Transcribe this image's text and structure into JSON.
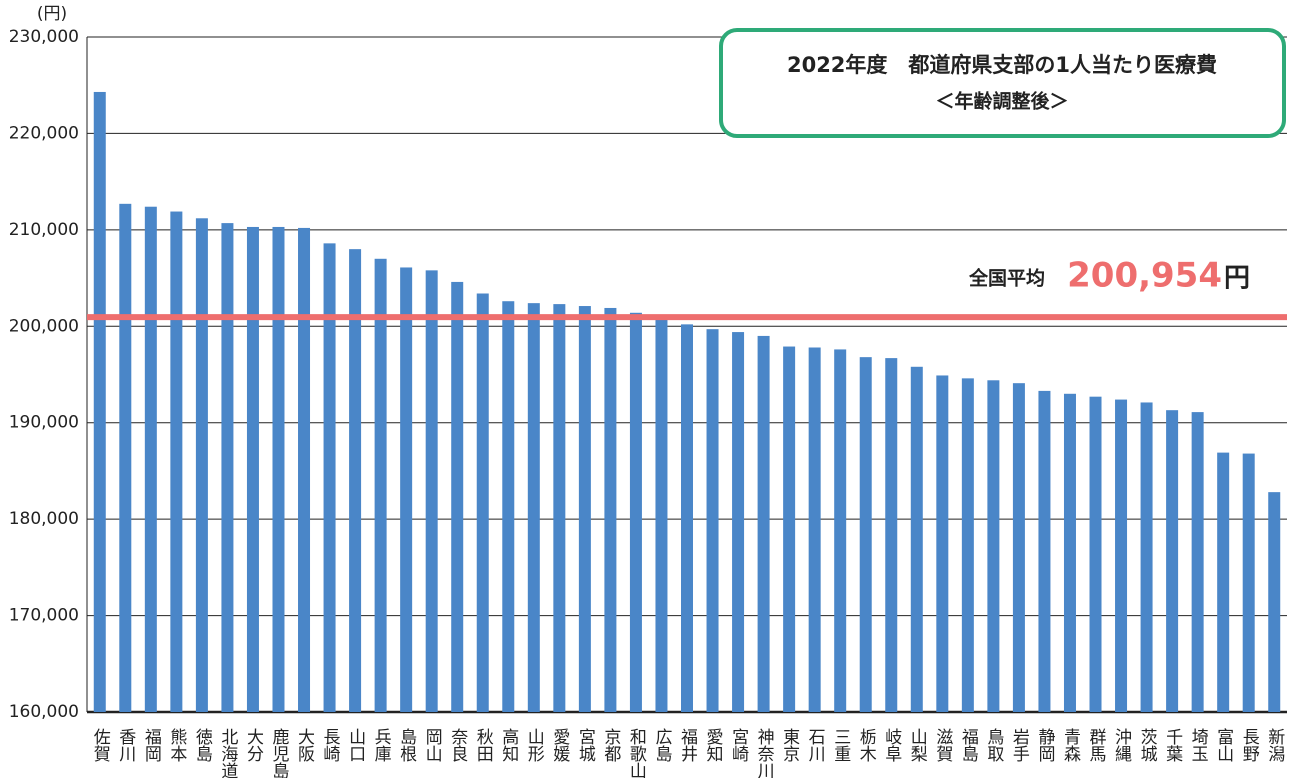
{
  "chart_data": {
    "type": "bar",
    "title": "2022年度　都道府県支部の1人当たり医療費",
    "subtitle": "＜年齢調整後＞",
    "y_label": "(円)",
    "categories": [
      "佐賀",
      "香川",
      "福岡",
      "熊本",
      "徳島",
      "北海道",
      "大分",
      "鹿児島",
      "大阪",
      "長崎",
      "山口",
      "兵庫",
      "島根",
      "岡山",
      "奈良",
      "秋田",
      "高知",
      "山形",
      "愛媛",
      "宮城",
      "京都",
      "和歌山",
      "広島",
      "福井",
      "愛知",
      "宮崎",
      "神奈川",
      "東京",
      "石川",
      "三重",
      "栃木",
      "岐阜",
      "山梨",
      "滋賀",
      "福島",
      "鳥取",
      "岩手",
      "静岡",
      "青森",
      "群馬",
      "沖縄",
      "茨城",
      "千葉",
      "埼玉",
      "富山",
      "長野",
      "新潟"
    ],
    "values": [
      224300,
      212700,
      212400,
      211900,
      211200,
      210700,
      210300,
      210300,
      210200,
      208600,
      208000,
      207000,
      206100,
      205800,
      204600,
      203400,
      202600,
      202400,
      202300,
      202100,
      201900,
      201400,
      201200,
      200200,
      199700,
      199400,
      199000,
      197900,
      197800,
      197600,
      196800,
      196700,
      195800,
      194900,
      194600,
      194400,
      194100,
      193300,
      193000,
      192700,
      192400,
      192100,
      191300,
      191100,
      186900,
      186800,
      182800
    ],
    "color": "#4a86c8",
    "ylim": [
      160000,
      230000
    ],
    "yticks": [
      {
        "value": 160000,
        "label": "160,000"
      },
      {
        "value": 170000,
        "label": "170,000"
      },
      {
        "value": 180000,
        "label": "180,000"
      },
      {
        "value": 190000,
        "label": "190,000"
      },
      {
        "value": 200000,
        "label": "200,000"
      },
      {
        "value": 210000,
        "label": "210,000"
      },
      {
        "value": 220000,
        "label": "220,000"
      },
      {
        "value": 230000,
        "label": "230,000"
      }
    ],
    "grid": true,
    "average": {
      "label": "全国平均",
      "value": 200954,
      "value_label": "200,954",
      "unit": "円",
      "color": "#ee6e6e"
    },
    "title_box_color": "#2eaa78"
  }
}
